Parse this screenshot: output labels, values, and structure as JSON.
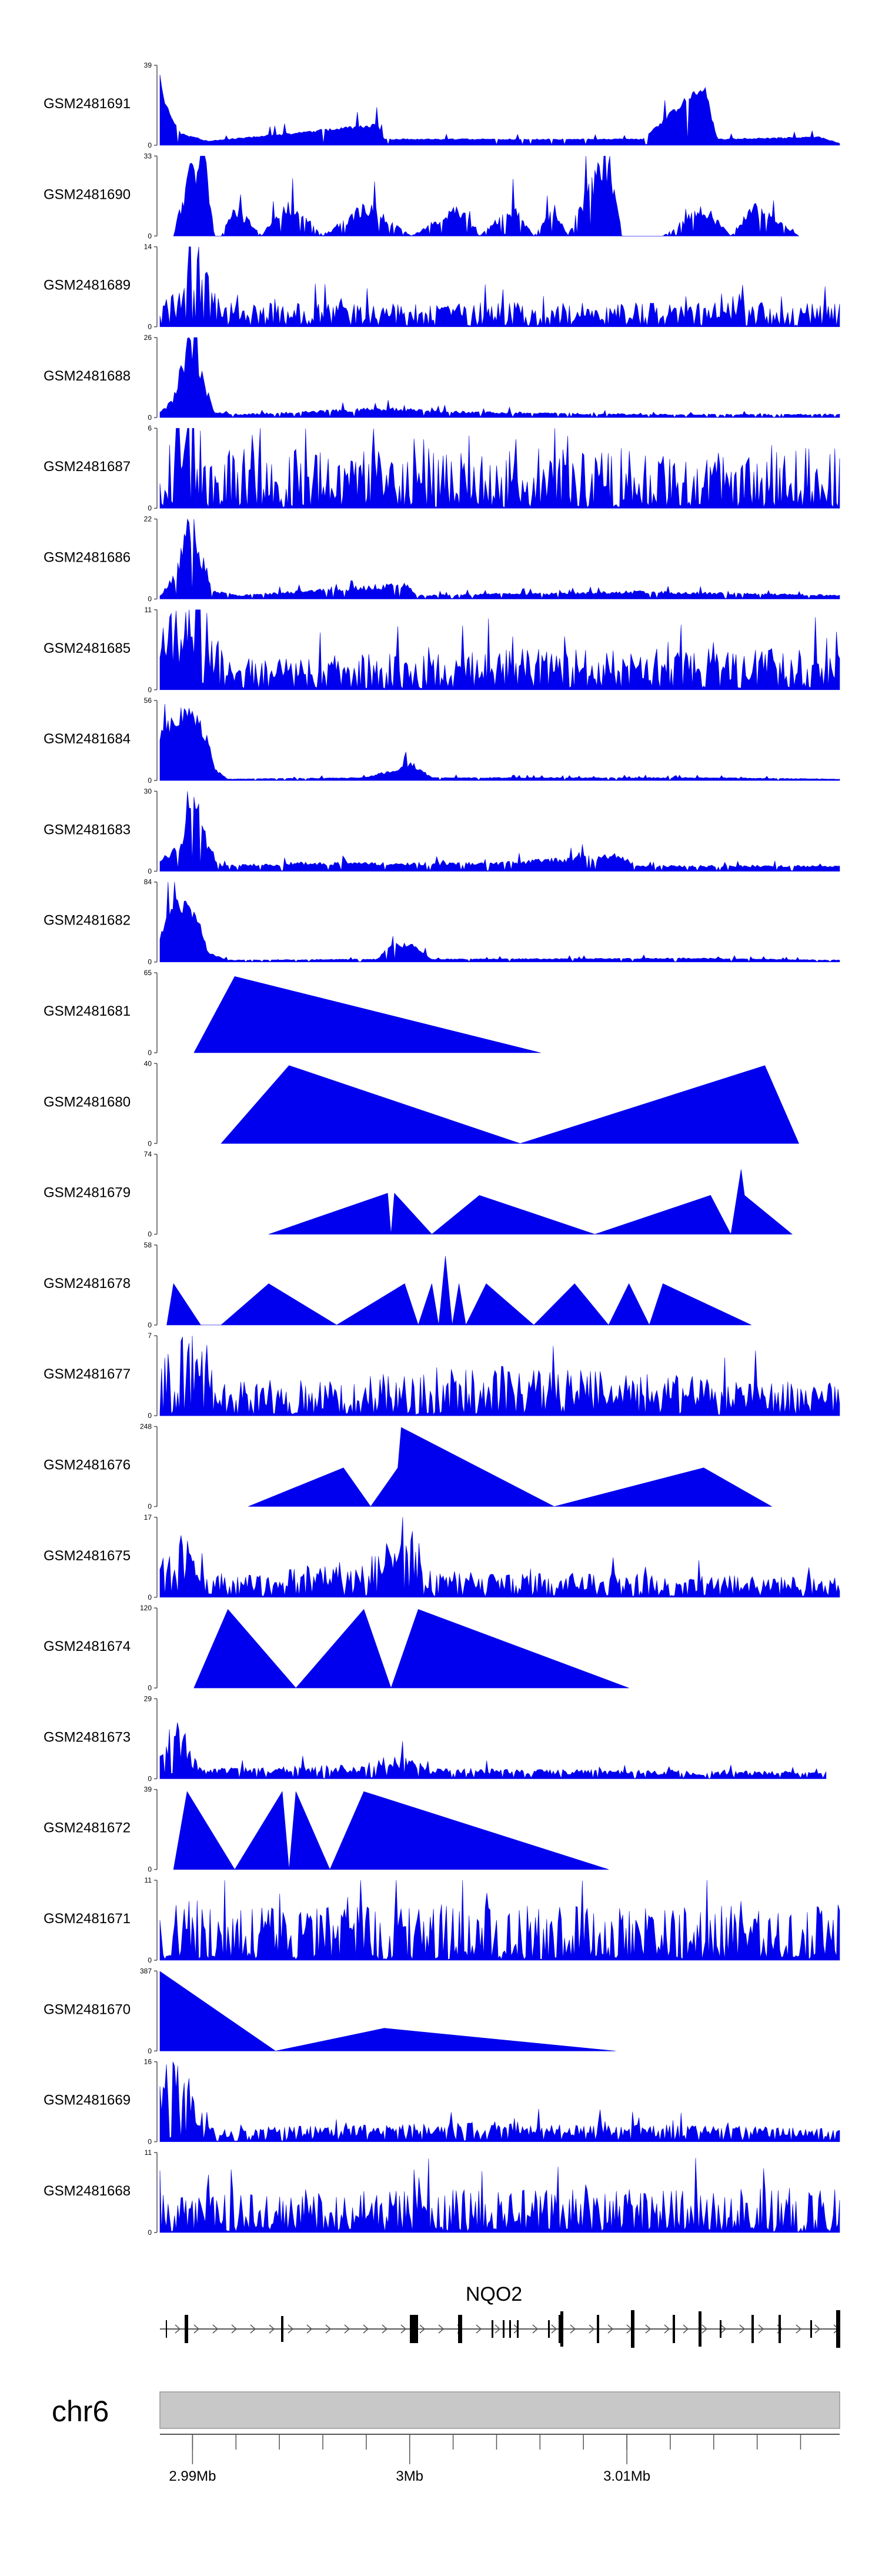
{
  "chart_data": {
    "type": "area",
    "title": "",
    "chromosome": "chr6",
    "gene": "NQO2",
    "x_axis": {
      "ticks": [
        {
          "pos": 2.99,
          "label": "2.99Mb"
        },
        {
          "pos": 3.0,
          "label": "3Mb"
        },
        {
          "pos": 3.01,
          "label": "3.01Mb"
        }
      ],
      "range": [
        2.9885,
        3.0198
      ]
    },
    "fill_color": "#0000ee",
    "tracks": [
      {
        "name": "GSM2481691",
        "ymax": "39",
        "ymin": "0",
        "profile": [
          [
            0,
            37
          ],
          [
            0.008,
            20
          ],
          [
            0.03,
            6
          ],
          [
            0.07,
            2
          ],
          [
            0.32,
            10
          ],
          [
            0.33,
            3
          ],
          [
            0.5,
            3
          ],
          [
            0.71,
            3
          ],
          [
            0.8,
            30
          ],
          [
            0.82,
            3
          ],
          [
            0.97,
            4
          ],
          [
            1,
            1
          ]
        ],
        "noise": 0.12,
        "seed": 1
      },
      {
        "name": "GSM2481690",
        "ymax": "33",
        "ymin": "0",
        "profile": [
          [
            0.02,
            0
          ],
          [
            0.045,
            28
          ],
          [
            0.065,
            32
          ],
          [
            0.08,
            0
          ],
          [
            0.09,
            0
          ],
          [
            0.11,
            12
          ],
          [
            0.15,
            0
          ],
          [
            0.18,
            12
          ],
          [
            0.2,
            12
          ],
          [
            0.24,
            0
          ],
          [
            0.3,
            12
          ],
          [
            0.32,
            10
          ],
          [
            0.37,
            0
          ],
          [
            0.44,
            12
          ],
          [
            0.47,
            0
          ],
          [
            0.52,
            12
          ],
          [
            0.55,
            0
          ],
          [
            0.58,
            12
          ],
          [
            0.6,
            0
          ],
          [
            0.64,
            25
          ],
          [
            0.66,
            33
          ],
          [
            0.68,
            0
          ],
          [
            0.74,
            0
          ],
          [
            0.8,
            12
          ],
          [
            0.84,
            0
          ],
          [
            0.87,
            12
          ],
          [
            0.9,
            8
          ],
          [
            0.94,
            0
          ]
        ],
        "noise": 0.35,
        "seed": 2
      },
      {
        "name": "GSM2481689",
        "ymax": "14",
        "ymin": "0",
        "profile": [
          [
            0,
            3
          ],
          [
            0.03,
            5
          ],
          [
            0.05,
            13
          ],
          [
            0.07,
            8
          ],
          [
            0.09,
            3
          ],
          [
            0.5,
            3
          ],
          [
            1,
            3
          ]
        ],
        "noise": 0.7,
        "seed": 3
      },
      {
        "name": "GSM2481688",
        "ymax": "26",
        "ymin": "0",
        "profile": [
          [
            0,
            2
          ],
          [
            0.02,
            6
          ],
          [
            0.04,
            24
          ],
          [
            0.06,
            14
          ],
          [
            0.08,
            2
          ],
          [
            0.12,
            1
          ],
          [
            0.34,
            3
          ],
          [
            0.4,
            2
          ],
          [
            0.7,
            1
          ],
          [
            1,
            1
          ]
        ],
        "noise": 0.3,
        "seed": 4
      },
      {
        "name": "GSM2481687",
        "ymax": "6",
        "ymin": "0",
        "profile": [
          [
            0,
            3
          ],
          [
            0.03,
            5
          ],
          [
            0.05,
            6
          ],
          [
            0.08,
            3
          ],
          [
            1,
            3
          ]
        ],
        "noise": 0.85,
        "seed": 5
      },
      {
        "name": "GSM2481686",
        "ymax": "22",
        "ymin": "0",
        "profile": [
          [
            0,
            1
          ],
          [
            0.02,
            6
          ],
          [
            0.04,
            18
          ],
          [
            0.05,
            20
          ],
          [
            0.06,
            12
          ],
          [
            0.08,
            2
          ],
          [
            0.12,
            1
          ],
          [
            0.36,
            4
          ],
          [
            0.38,
            1
          ],
          [
            0.7,
            2
          ],
          [
            1,
            1
          ]
        ],
        "noise": 0.3,
        "seed": 6
      },
      {
        "name": "GSM2481685",
        "ymax": "11",
        "ymin": "0",
        "profile": [
          [
            0,
            6
          ],
          [
            0.04,
            10
          ],
          [
            0.06,
            11
          ],
          [
            0.08,
            6
          ],
          [
            0.1,
            3
          ],
          [
            0.5,
            4
          ],
          [
            1,
            4
          ]
        ],
        "noise": 0.7,
        "seed": 7
      },
      {
        "name": "GSM2481684",
        "ymax": "56",
        "ymin": "0",
        "profile": [
          [
            0,
            30
          ],
          [
            0.02,
            45
          ],
          [
            0.05,
            48
          ],
          [
            0.07,
            30
          ],
          [
            0.08,
            8
          ],
          [
            0.1,
            1
          ],
          [
            0.3,
            2
          ],
          [
            0.35,
            8
          ],
          [
            0.37,
            12
          ],
          [
            0.4,
            2
          ],
          [
            0.8,
            2
          ],
          [
            1,
            1
          ]
        ],
        "noise": 0.2,
        "seed": 8
      },
      {
        "name": "GSM2481683",
        "ymax": "30",
        "ymin": "0",
        "profile": [
          [
            0,
            4
          ],
          [
            0.03,
            10
          ],
          [
            0.05,
            28
          ],
          [
            0.07,
            10
          ],
          [
            0.09,
            2
          ],
          [
            0.2,
            3
          ],
          [
            0.5,
            3
          ],
          [
            0.68,
            6
          ],
          [
            0.7,
            2
          ],
          [
            1,
            2
          ]
        ],
        "noise": 0.3,
        "seed": 9
      },
      {
        "name": "GSM2481682",
        "ymax": "84",
        "ymin": "0",
        "profile": [
          [
            0,
            25
          ],
          [
            0.02,
            70
          ],
          [
            0.04,
            58
          ],
          [
            0.06,
            40
          ],
          [
            0.07,
            10
          ],
          [
            0.1,
            2
          ],
          [
            0.32,
            3
          ],
          [
            0.34,
            18
          ],
          [
            0.37,
            18
          ],
          [
            0.4,
            3
          ],
          [
            0.8,
            4
          ],
          [
            1,
            2
          ]
        ],
        "noise": 0.2,
        "seed": 10
      },
      {
        "name": "GSM2481681",
        "ymax": "65",
        "ymin": "0",
        "profile": [
          [
            0.05,
            0
          ],
          [
            0.11,
            62
          ],
          [
            0.56,
            0
          ]
        ],
        "noise": 0,
        "seed": 11
      },
      {
        "name": "GSM2481680",
        "ymax": "40",
        "ymin": "0",
        "profile": [
          [
            0.09,
            0
          ],
          [
            0.19,
            39
          ],
          [
            0.53,
            0
          ],
          [
            0.89,
            39
          ],
          [
            0.94,
            0
          ]
        ],
        "noise": 0,
        "seed": 12
      },
      {
        "name": "GSM2481679",
        "ymax": "74",
        "ymin": "0",
        "profile": [
          [
            0.16,
            0
          ],
          [
            0.335,
            38
          ],
          [
            0.34,
            0
          ],
          [
            0.345,
            38
          ],
          [
            0.4,
            0
          ],
          [
            0.47,
            36
          ],
          [
            0.64,
            0
          ],
          [
            0.81,
            36
          ],
          [
            0.84,
            0
          ],
          [
            0.855,
            60
          ],
          [
            0.86,
            36
          ],
          [
            0.93,
            0
          ]
        ],
        "noise": 0,
        "seed": 13
      },
      {
        "name": "GSM2481678",
        "ymax": "58",
        "ymin": "0",
        "profile": [
          [
            0.01,
            0
          ],
          [
            0.02,
            30
          ],
          [
            0.06,
            0
          ],
          [
            0.09,
            0
          ],
          [
            0.16,
            30
          ],
          [
            0.26,
            0
          ],
          [
            0.36,
            30
          ],
          [
            0.38,
            0
          ],
          [
            0.4,
            30
          ],
          [
            0.41,
            0
          ],
          [
            0.42,
            50
          ],
          [
            0.43,
            0
          ],
          [
            0.44,
            30
          ],
          [
            0.45,
            0
          ],
          [
            0.48,
            30
          ],
          [
            0.55,
            0
          ],
          [
            0.61,
            30
          ],
          [
            0.66,
            0
          ],
          [
            0.69,
            30
          ],
          [
            0.72,
            0
          ],
          [
            0.74,
            30
          ],
          [
            0.87,
            0
          ]
        ],
        "noise": 0,
        "seed": 14
      },
      {
        "name": "GSM2481677",
        "ymax": "7",
        "ymin": "0",
        "profile": [
          [
            0,
            3
          ],
          [
            0.04,
            6
          ],
          [
            0.06,
            5
          ],
          [
            0.1,
            2
          ],
          [
            0.5,
            3
          ],
          [
            1,
            2
          ]
        ],
        "noise": 0.75,
        "seed": 15
      },
      {
        "name": "GSM2481676",
        "ymax": "248",
        "ymin": "0",
        "profile": [
          [
            0.13,
            0
          ],
          [
            0.27,
            120
          ],
          [
            0.31,
            0
          ],
          [
            0.35,
            120
          ],
          [
            0.355,
            245
          ],
          [
            0.58,
            0
          ],
          [
            0.8,
            120
          ],
          [
            0.9,
            0
          ]
        ],
        "noise": 0,
        "seed": 16
      },
      {
        "name": "GSM2481675",
        "ymax": "17",
        "ymin": "0",
        "profile": [
          [
            0,
            6
          ],
          [
            0.03,
            10
          ],
          [
            0.06,
            8
          ],
          [
            0.1,
            3
          ],
          [
            0.3,
            6
          ],
          [
            0.36,
            10
          ],
          [
            0.4,
            4
          ],
          [
            1,
            3
          ]
        ],
        "noise": 0.7,
        "seed": 17
      },
      {
        "name": "GSM2481674",
        "ymax": "120",
        "ymin": "0",
        "profile": [
          [
            0.05,
            0
          ],
          [
            0.1,
            118
          ],
          [
            0.2,
            0
          ],
          [
            0.3,
            118
          ],
          [
            0.34,
            0
          ],
          [
            0.38,
            118
          ],
          [
            0.69,
            0
          ]
        ],
        "noise": 0,
        "seed": 18
      },
      {
        "name": "GSM2481673",
        "ymax": "29",
        "ymin": "0",
        "profile": [
          [
            0,
            8
          ],
          [
            0.02,
            18
          ],
          [
            0.04,
            10
          ],
          [
            0.06,
            3
          ],
          [
            0.3,
            4
          ],
          [
            0.34,
            8
          ],
          [
            0.4,
            3
          ],
          [
            0.98,
            2
          ]
        ],
        "noise": 0.5,
        "seed": 19
      },
      {
        "name": "GSM2481672",
        "ymax": "39",
        "ymin": "0",
        "profile": [
          [
            0.02,
            0
          ],
          [
            0.04,
            38
          ],
          [
            0.11,
            0
          ],
          [
            0.18,
            38
          ],
          [
            0.19,
            0
          ],
          [
            0.2,
            38
          ],
          [
            0.25,
            0
          ],
          [
            0.3,
            38
          ],
          [
            0.66,
            0
          ]
        ],
        "noise": 0,
        "seed": 20
      },
      {
        "name": "GSM2481671",
        "ymax": "11",
        "ymin": "0",
        "profile": [
          [
            0,
            5
          ],
          [
            1,
            5
          ]
        ],
        "noise": 0.9,
        "seed": 21
      },
      {
        "name": "GSM2481670",
        "ymax": "387",
        "ymin": "0",
        "profile": [
          [
            0,
            385
          ],
          [
            0.17,
            0
          ],
          [
            0.33,
            110
          ],
          [
            0.67,
            0
          ]
        ],
        "noise": 0,
        "seed": 22
      },
      {
        "name": "GSM2481669",
        "ymax": "16",
        "ymin": "0",
        "profile": [
          [
            0,
            10
          ],
          [
            0.02,
            14
          ],
          [
            0.05,
            6
          ],
          [
            0.08,
            2
          ],
          [
            0.5,
            3
          ],
          [
            1,
            2
          ]
        ],
        "noise": 0.6,
        "seed": 23
      },
      {
        "name": "GSM2481668",
        "ymax": "11",
        "ymin": "0",
        "profile": [
          [
            0,
            4
          ],
          [
            1,
            4
          ]
        ],
        "noise": 0.85,
        "seed": 24
      }
    ]
  }
}
